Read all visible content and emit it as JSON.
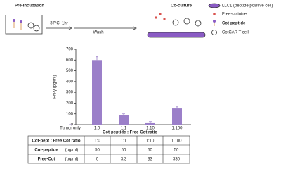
{
  "diagram": {
    "pre_label": "Pre-incubation",
    "step1": "37°C, 1hr",
    "step2": "Wash",
    "co_label": "Co-culture",
    "legend": [
      "LLC1 (peptide positive cell)",
      "Free-cotinine",
      "Cot-peptide",
      "CotCAR T cell"
    ]
  },
  "chart_data": {
    "type": "bar",
    "y_label": "IFN-γ (pg/ml)",
    "x_label": "Cot-peptide  : Free-Cot ratio",
    "categories": [
      "Tumor only",
      "1:0",
      "1:1",
      "1:10",
      "1:100"
    ],
    "values": [
      0,
      600,
      85,
      20,
      150
    ],
    "errors": [
      0,
      30,
      15,
      8,
      15
    ],
    "color": "#9b7fc9",
    "ylim": [
      0,
      700
    ],
    "yticks": [
      0,
      100,
      200,
      300,
      400,
      500,
      600,
      700
    ]
  },
  "table": {
    "rows": [
      {
        "label": "Cot-pept : Free Cot ratio",
        "cells": [
          "1:0",
          "1:1",
          "1:10",
          "1:100"
        ]
      },
      {
        "label": "Cot-peptide",
        "unit": "(ug/ml)",
        "cells": [
          "50",
          "50",
          "50",
          "50"
        ]
      },
      {
        "label": "Free-Cot",
        "unit": "(ug/ml)",
        "cells": [
          "0",
          "3.3",
          "33",
          "330"
        ]
      }
    ]
  }
}
